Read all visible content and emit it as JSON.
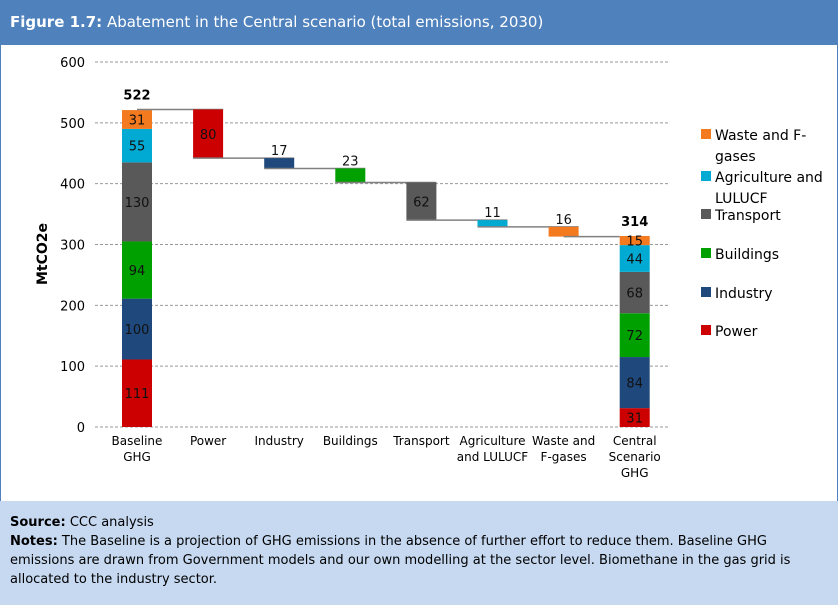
{
  "header": {
    "label": "Figure 1.7:",
    "title": "Abatement in the Central scenario (total emissions, 2030)"
  },
  "chart_data": {
    "type": "waterfall",
    "ylabel": "MtCO2e",
    "ylim": [
      0,
      600
    ],
    "yticks": [
      0,
      100,
      200,
      300,
      400,
      500,
      600
    ],
    "grid": true,
    "legend_position": "right",
    "categories": [
      [
        "Baseline",
        "GHG"
      ],
      [
        "Power"
      ],
      [
        "Industry"
      ],
      [
        "Buildings"
      ],
      [
        "Transport"
      ],
      [
        "Agriculture",
        "and LULUCF"
      ],
      [
        "Waste and",
        "F-gases"
      ],
      [
        "Central",
        "Scenario",
        "GHG"
      ]
    ],
    "sectors": [
      {
        "name": "Power",
        "color": "#CC0000"
      },
      {
        "name": "Industry",
        "color": "#1F497D"
      },
      {
        "name": "Buildings",
        "color": "#00A000"
      },
      {
        "name": "Transport",
        "color": "#595959"
      },
      {
        "name": "Agriculture and LULUCF",
        "color": "#00AAD2"
      },
      {
        "name": "Waste and F-gases",
        "color": "#F47A20"
      }
    ],
    "baseline": {
      "total": 522,
      "values": [
        111,
        100,
        94,
        130,
        55,
        31
      ]
    },
    "abatement": [
      80,
      17,
      23,
      62,
      11,
      16
    ],
    "central": {
      "total": 314,
      "values": [
        31,
        84,
        72,
        68,
        44,
        15
      ]
    }
  },
  "legend": [
    [
      "Waste and F-",
      "gases"
    ],
    [
      "Agriculture and",
      "LULUCF"
    ],
    [
      "Transport"
    ],
    [
      "Buildings"
    ],
    [
      "Industry"
    ],
    [
      "Power"
    ]
  ],
  "notes": {
    "source_label": "Source:",
    "source": "CCC analysis",
    "notes_label": "Notes:",
    "notes": "The Baseline is a projection of GHG emissions in the absence of further effort to reduce them. Baseline GHG emissions are drawn from Government models and our own modelling at the sector level. Biomethane in the gas grid is allocated to the industry sector."
  }
}
